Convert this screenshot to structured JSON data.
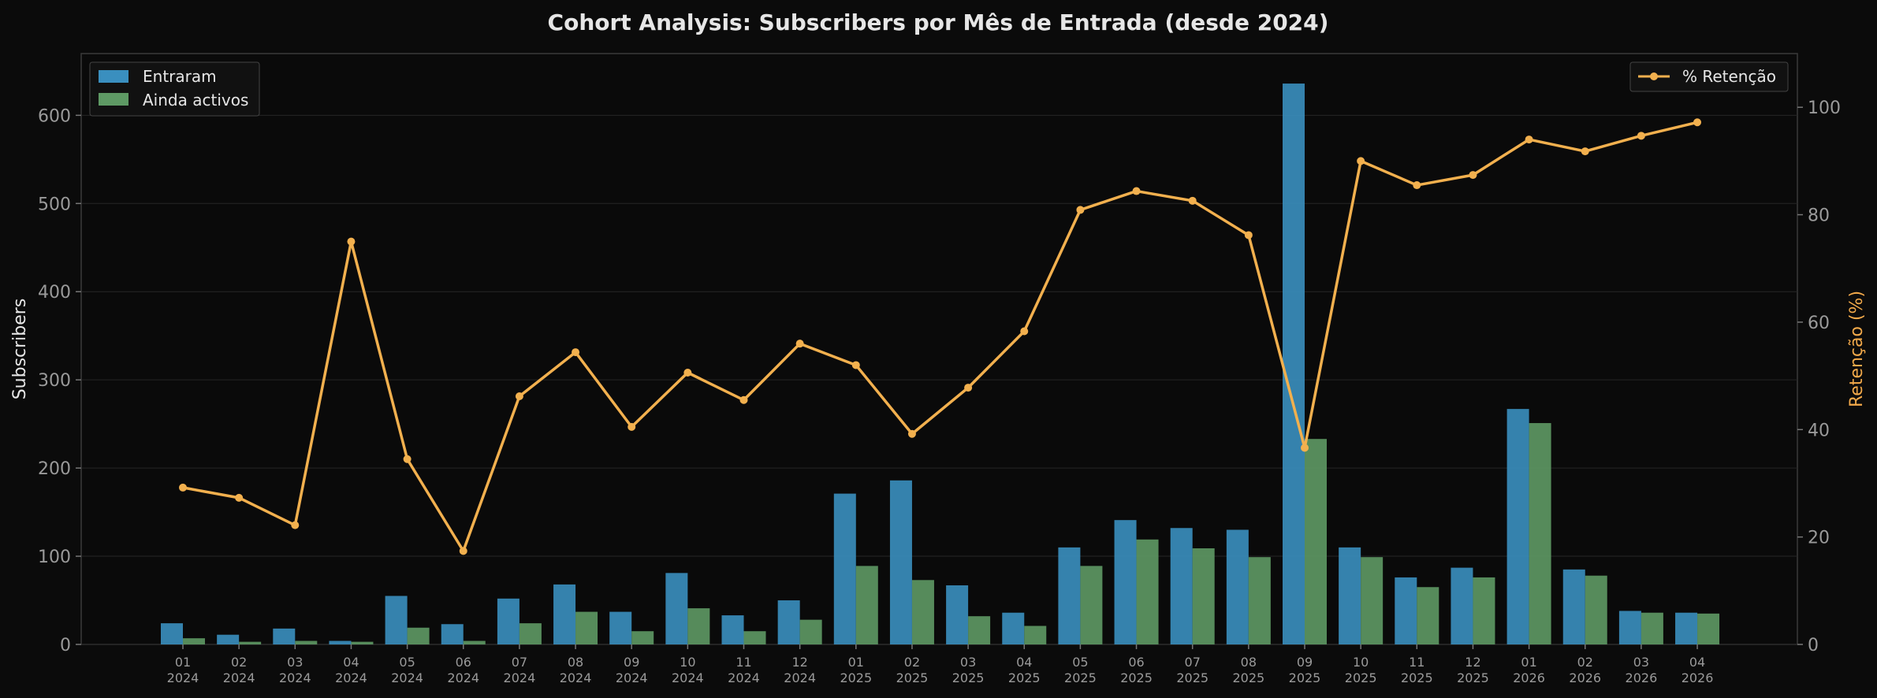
{
  "chart_data": {
    "type": "bar",
    "title": "Cohort Analysis: Subscribers por Mês de Entrada (desde 2024)",
    "ylabel": "Subscribers",
    "y2label": "Retenção (%)",
    "ylim": [
      0,
      670
    ],
    "y2lim": [
      0,
      110
    ],
    "yticks": [
      0,
      100,
      200,
      300,
      400,
      500,
      600
    ],
    "y2ticks": [
      0,
      20,
      40,
      60,
      80,
      100
    ],
    "grid": true,
    "categories": [
      {
        "month": "01",
        "year": "2024"
      },
      {
        "month": "02",
        "year": "2024"
      },
      {
        "month": "03",
        "year": "2024"
      },
      {
        "month": "04",
        "year": "2024"
      },
      {
        "month": "05",
        "year": "2024"
      },
      {
        "month": "06",
        "year": "2024"
      },
      {
        "month": "07",
        "year": "2024"
      },
      {
        "month": "08",
        "year": "2024"
      },
      {
        "month": "09",
        "year": "2024"
      },
      {
        "month": "10",
        "year": "2024"
      },
      {
        "month": "11",
        "year": "2024"
      },
      {
        "month": "12",
        "year": "2024"
      },
      {
        "month": "01",
        "year": "2025"
      },
      {
        "month": "02",
        "year": "2025"
      },
      {
        "month": "03",
        "year": "2025"
      },
      {
        "month": "04",
        "year": "2025"
      },
      {
        "month": "05",
        "year": "2025"
      },
      {
        "month": "06",
        "year": "2025"
      },
      {
        "month": "07",
        "year": "2025"
      },
      {
        "month": "08",
        "year": "2025"
      },
      {
        "month": "09",
        "year": "2025"
      },
      {
        "month": "10",
        "year": "2025"
      },
      {
        "month": "11",
        "year": "2025"
      },
      {
        "month": "12",
        "year": "2025"
      },
      {
        "month": "01",
        "year": "2026"
      },
      {
        "month": "02",
        "year": "2026"
      },
      {
        "month": "03",
        "year": "2026"
      },
      {
        "month": "04",
        "year": "2026"
      }
    ],
    "series": [
      {
        "name": "Entraram",
        "type": "bar",
        "axis": "left",
        "color": "#3a8fbf",
        "values": [
          24,
          11,
          18,
          4,
          55,
          23,
          52,
          68,
          37,
          81,
          33,
          50,
          171,
          186,
          67,
          36,
          110,
          141,
          132,
          130,
          636,
          110,
          76,
          87,
          267,
          85,
          38,
          36
        ]
      },
      {
        "name": "Ainda activos",
        "type": "bar",
        "axis": "left",
        "color": "#5e9964",
        "values": [
          7,
          3,
          4,
          3,
          19,
          4,
          24,
          37,
          15,
          41,
          15,
          28,
          89,
          73,
          32,
          21,
          89,
          119,
          109,
          99,
          233,
          99,
          65,
          76,
          251,
          78,
          36,
          35
        ]
      },
      {
        "name": "% Retenção",
        "type": "line",
        "axis": "right",
        "color": "#f2b04e",
        "values": [
          29.2,
          27.3,
          22.2,
          75.0,
          34.5,
          17.4,
          46.2,
          54.4,
          40.5,
          50.6,
          45.5,
          56.0,
          52.0,
          39.2,
          47.8,
          58.3,
          80.9,
          84.4,
          82.6,
          76.2,
          36.6,
          90.0,
          85.5,
          87.4,
          94.0,
          91.8,
          94.7,
          97.2
        ]
      }
    ],
    "legend_left": {
      "placement": "top-left",
      "entries": [
        "Entraram",
        "Ainda activos"
      ]
    },
    "legend_right": {
      "placement": "top-right",
      "entries": [
        "% Retenção"
      ]
    }
  }
}
